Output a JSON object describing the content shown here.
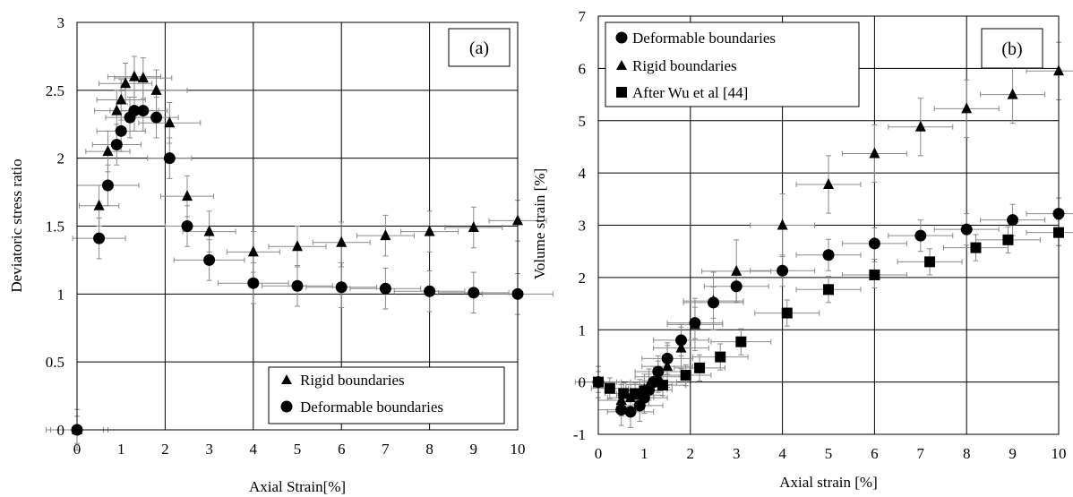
{
  "chart_data": [
    {
      "type": "scatter",
      "panel_label": "(a)",
      "xlabel": "Axial Strain[%]",
      "ylabel": "Deviatoric stress ratio",
      "xlim": [
        0,
        10
      ],
      "ylim": [
        0,
        3
      ],
      "x_ticks": [
        "0",
        "1",
        "2",
        "3",
        "4",
        "5",
        "6",
        "7",
        "8",
        "9",
        "10"
      ],
      "y_ticks": [
        "0",
        "0.5",
        "1",
        "1.5",
        "2",
        "2.5",
        "3"
      ],
      "grid": true,
      "error_bars": true,
      "legend_position": "bottom-right",
      "series": [
        {
          "name": "Rigid boundaries",
          "marker": "triangle",
          "points": [
            {
              "x": 0,
              "y": 0,
              "xerr": 0.7,
              "yerr": 0.15
            },
            {
              "x": 0.5,
              "y": 1.65,
              "xerr": 0.45,
              "yerr": 0.15
            },
            {
              "x": 0.7,
              "y": 2.05,
              "xerr": 0.5,
              "yerr": 0.15
            },
            {
              "x": 0.9,
              "y": 2.35,
              "xerr": 0.5,
              "yerr": 0.15
            },
            {
              "x": 1.0,
              "y": 2.43,
              "xerr": 0.55,
              "yerr": 0.15
            },
            {
              "x": 1.1,
              "y": 2.55,
              "xerr": 0.6,
              "yerr": 0.15
            },
            {
              "x": 1.3,
              "y": 2.6,
              "xerr": 0.6,
              "yerr": 0.15
            },
            {
              "x": 1.5,
              "y": 2.59,
              "xerr": 0.65,
              "yerr": 0.15
            },
            {
              "x": 1.8,
              "y": 2.5,
              "xerr": 0.7,
              "yerr": 0.15
            },
            {
              "x": 2.1,
              "y": 2.26,
              "xerr": 0.7,
              "yerr": 0.15
            },
            {
              "x": 2.5,
              "y": 1.72,
              "xerr": 0.6,
              "yerr": 0.15
            },
            {
              "x": 3,
              "y": 1.46,
              "xerr": 0.6,
              "yerr": 0.15
            },
            {
              "x": 4,
              "y": 1.31,
              "xerr": 0.6,
              "yerr": 0.15
            },
            {
              "x": 5,
              "y": 1.35,
              "xerr": 0.65,
              "yerr": 0.15
            },
            {
              "x": 6,
              "y": 1.38,
              "xerr": 0.65,
              "yerr": 0.15
            },
            {
              "x": 7,
              "y": 1.43,
              "xerr": 0.65,
              "yerr": 0.15
            },
            {
              "x": 8,
              "y": 1.46,
              "xerr": 0.65,
              "yerr": 0.15
            },
            {
              "x": 9,
              "y": 1.49,
              "xerr": 0.65,
              "yerr": 0.15
            },
            {
              "x": 10,
              "y": 1.54,
              "xerr": 0.65,
              "yerr": 0.15
            }
          ]
        },
        {
          "name": "Deformable boundaries",
          "marker": "circle",
          "points": [
            {
              "x": 0,
              "y": 0,
              "xerr": 0.6,
              "yerr": 0.1
            },
            {
              "x": 0.5,
              "y": 1.41,
              "xerr": 0.6,
              "yerr": 0.15
            },
            {
              "x": 0.7,
              "y": 1.8,
              "xerr": 0.7,
              "yerr": 0.15
            },
            {
              "x": 0.9,
              "y": 2.1,
              "xerr": 0.55,
              "yerr": 0.15
            },
            {
              "x": 1.0,
              "y": 2.2,
              "xerr": 0.55,
              "yerr": 0.15
            },
            {
              "x": 1.2,
              "y": 2.3,
              "xerr": 0.55,
              "yerr": 0.15
            },
            {
              "x": 1.3,
              "y": 2.35,
              "xerr": 0.55,
              "yerr": 0.15
            },
            {
              "x": 1.5,
              "y": 2.35,
              "xerr": 0.55,
              "yerr": 0.15
            },
            {
              "x": 1.8,
              "y": 2.3,
              "xerr": 0.5,
              "yerr": 0.15
            },
            {
              "x": 2.1,
              "y": 2.0,
              "xerr": 0.5,
              "yerr": 0.15
            },
            {
              "x": 2.5,
              "y": 1.5,
              "xerr": 0.5,
              "yerr": 0.15
            },
            {
              "x": 3,
              "y": 1.25,
              "xerr": 0.8,
              "yerr": 0.15
            },
            {
              "x": 4,
              "y": 1.08,
              "xerr": 0.8,
              "yerr": 0.15
            },
            {
              "x": 5,
              "y": 1.06,
              "xerr": 0.8,
              "yerr": 0.15
            },
            {
              "x": 6,
              "y": 1.05,
              "xerr": 0.8,
              "yerr": 0.15
            },
            {
              "x": 7,
              "y": 1.04,
              "xerr": 0.8,
              "yerr": 0.15
            },
            {
              "x": 8,
              "y": 1.02,
              "xerr": 0.8,
              "yerr": 0.15
            },
            {
              "x": 9,
              "y": 1.01,
              "xerr": 0.8,
              "yerr": 0.15
            },
            {
              "x": 10,
              "y": 1.0,
              "xerr": 0.8,
              "yerr": 0.15
            }
          ]
        }
      ]
    },
    {
      "type": "scatter",
      "panel_label": "(b)",
      "xlabel": "Axial strain [%]",
      "ylabel": "Volume strain [%]",
      "xlim": [
        0,
        10
      ],
      "ylim": [
        -1,
        7
      ],
      "x_ticks": [
        "0",
        "1",
        "2",
        "3",
        "4",
        "5",
        "6",
        "7",
        "8",
        "9",
        "10"
      ],
      "y_ticks": [
        "-1",
        "0",
        "1",
        "2",
        "3",
        "4",
        "5",
        "6",
        "7"
      ],
      "grid": true,
      "error_bars": true,
      "legend_position": "top-left",
      "series": [
        {
          "name": "Deformable boundaries",
          "marker": "circle",
          "points": [
            {
              "x": 0,
              "y": 0,
              "xerr": 0.5,
              "yerr": 0.3
            },
            {
              "x": 0.5,
              "y": -0.53,
              "xerr": 0.5,
              "yerr": 0.3
            },
            {
              "x": 0.7,
              "y": -0.57,
              "xerr": 0.5,
              "yerr": 0.3
            },
            {
              "x": 0.9,
              "y": -0.45,
              "xerr": 0.5,
              "yerr": 0.3
            },
            {
              "x": 1.0,
              "y": -0.3,
              "xerr": 0.5,
              "yerr": 0.3
            },
            {
              "x": 1.1,
              "y": -0.15,
              "xerr": 0.5,
              "yerr": 0.3
            },
            {
              "x": 1.2,
              "y": 0.0,
              "xerr": 0.5,
              "yerr": 0.3
            },
            {
              "x": 1.3,
              "y": 0.2,
              "xerr": 0.5,
              "yerr": 0.3
            },
            {
              "x": 1.5,
              "y": 0.45,
              "xerr": 0.55,
              "yerr": 0.3
            },
            {
              "x": 1.8,
              "y": 0.8,
              "xerr": 0.6,
              "yerr": 0.3
            },
            {
              "x": 2.1,
              "y": 1.13,
              "xerr": 0.6,
              "yerr": 0.3
            },
            {
              "x": 2.5,
              "y": 1.52,
              "xerr": 0.65,
              "yerr": 0.3
            },
            {
              "x": 3,
              "y": 1.83,
              "xerr": 0.7,
              "yerr": 0.3
            },
            {
              "x": 4,
              "y": 2.13,
              "xerr": 0.7,
              "yerr": 0.3
            },
            {
              "x": 5,
              "y": 2.43,
              "xerr": 0.7,
              "yerr": 0.3
            },
            {
              "x": 6,
              "y": 2.65,
              "xerr": 0.7,
              "yerr": 0.3
            },
            {
              "x": 7,
              "y": 2.8,
              "xerr": 0.7,
              "yerr": 0.3
            },
            {
              "x": 8,
              "y": 2.92,
              "xerr": 0.7,
              "yerr": 0.3
            },
            {
              "x": 9,
              "y": 3.1,
              "xerr": 0.7,
              "yerr": 0.3
            },
            {
              "x": 10,
              "y": 3.22,
              "xerr": 0.7,
              "yerr": 0.3
            }
          ]
        },
        {
          "name": "Rigid boundaries",
          "marker": "triangle",
          "points": [
            {
              "x": 0.5,
              "y": -0.35,
              "xerr": 0.5,
              "yerr": 0.3
            },
            {
              "x": 0.7,
              "y": -0.3,
              "xerr": 0.5,
              "yerr": 0.3
            },
            {
              "x": 0.9,
              "y": -0.25,
              "xerr": 0.5,
              "yerr": 0.3
            },
            {
              "x": 1.0,
              "y": -0.15,
              "xerr": 0.5,
              "yerr": 0.3
            },
            {
              "x": 1.1,
              "y": -0.05,
              "xerr": 0.5,
              "yerr": 0.3
            },
            {
              "x": 1.3,
              "y": 0.1,
              "xerr": 0.5,
              "yerr": 0.3
            },
            {
              "x": 1.5,
              "y": 0.3,
              "xerr": 0.55,
              "yerr": 0.4
            },
            {
              "x": 1.8,
              "y": 0.65,
              "xerr": 0.6,
              "yerr": 0.4
            },
            {
              "x": 2.1,
              "y": 1.1,
              "xerr": 0.6,
              "yerr": 0.5
            },
            {
              "x": 2.5,
              "y": 1.55,
              "xerr": 0.65,
              "yerr": 0.55
            },
            {
              "x": 3,
              "y": 2.12,
              "xerr": 0.75,
              "yerr": 0.6
            },
            {
              "x": 4,
              "y": 3.0,
              "xerr": 0.7,
              "yerr": 0.6
            },
            {
              "x": 5,
              "y": 3.78,
              "xerr": 0.7,
              "yerr": 0.55
            },
            {
              "x": 6,
              "y": 4.37,
              "xerr": 0.7,
              "yerr": 0.55
            },
            {
              "x": 7,
              "y": 4.88,
              "xerr": 0.7,
              "yerr": 0.55
            },
            {
              "x": 8,
              "y": 5.23,
              "xerr": 0.7,
              "yerr": 0.55
            },
            {
              "x": 9,
              "y": 5.5,
              "xerr": 0.7,
              "yerr": 0.55
            },
            {
              "x": 10,
              "y": 5.95,
              "xerr": 0.7,
              "yerr": 0.55
            }
          ]
        },
        {
          "name": "After Wu et al [44]",
          "marker": "square",
          "points": [
            {
              "x": 0,
              "y": 0.0,
              "xerr": 0.4,
              "yerr": 0.2
            },
            {
              "x": 0.25,
              "y": -0.12,
              "xerr": 0.4,
              "yerr": 0.2
            },
            {
              "x": 0.55,
              "y": -0.22,
              "xerr": 0.4,
              "yerr": 0.2
            },
            {
              "x": 0.8,
              "y": -0.22,
              "xerr": 0.4,
              "yerr": 0.2
            },
            {
              "x": 1.0,
              "y": -0.17,
              "xerr": 0.4,
              "yerr": 0.2
            },
            {
              "x": 1.4,
              "y": -0.06,
              "xerr": 0.5,
              "yerr": 0.2
            },
            {
              "x": 1.9,
              "y": 0.13,
              "xerr": 0.55,
              "yerr": 0.2
            },
            {
              "x": 2.2,
              "y": 0.27,
              "xerr": 0.55,
              "yerr": 0.25
            },
            {
              "x": 2.65,
              "y": 0.48,
              "xerr": 0.6,
              "yerr": 0.25
            },
            {
              "x": 3.1,
              "y": 0.77,
              "xerr": 0.65,
              "yerr": 0.25
            },
            {
              "x": 4.1,
              "y": 1.32,
              "xerr": 0.7,
              "yerr": 0.25
            },
            {
              "x": 5,
              "y": 1.77,
              "xerr": 0.7,
              "yerr": 0.25
            },
            {
              "x": 6,
              "y": 2.05,
              "xerr": 0.7,
              "yerr": 0.25
            },
            {
              "x": 7.2,
              "y": 2.3,
              "xerr": 0.7,
              "yerr": 0.25
            },
            {
              "x": 8.2,
              "y": 2.57,
              "xerr": 0.7,
              "yerr": 0.25
            },
            {
              "x": 8.9,
              "y": 2.72,
              "xerr": 0.7,
              "yerr": 0.25
            },
            {
              "x": 10,
              "y": 2.86,
              "xerr": 0.7,
              "yerr": 0.25
            }
          ]
        }
      ]
    }
  ]
}
